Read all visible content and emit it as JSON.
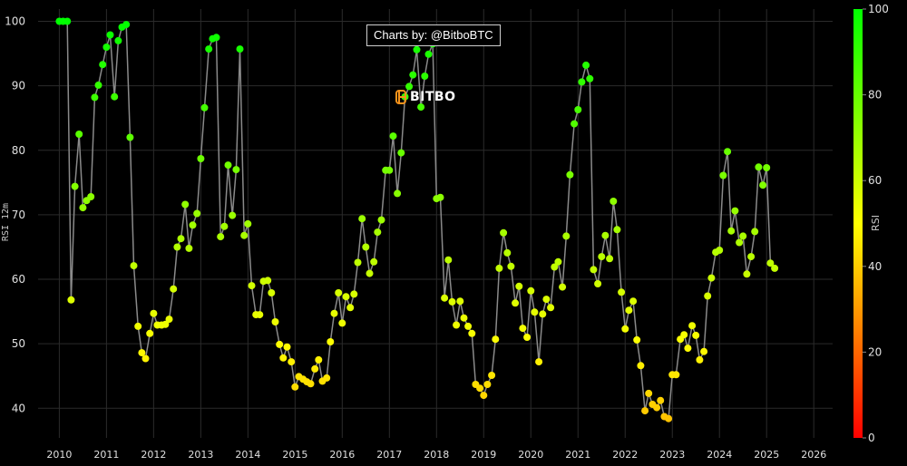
{
  "attribution": "Charts by: @BitboBTC",
  "watermark": {
    "text": "BITBO"
  },
  "chart_data": {
    "type": "scatter",
    "mode": "lines+markers",
    "title": "",
    "xlabel": "",
    "ylabel": "RSI 12m",
    "x_ticks": [
      "2010",
      "2011",
      "2012",
      "2013",
      "2014",
      "2015",
      "2016",
      "2017",
      "2018",
      "2019",
      "2020",
      "2021",
      "2022",
      "2023",
      "2024",
      "2025",
      "2026"
    ],
    "y_ticks": [
      40,
      50,
      60,
      70,
      80,
      90,
      100
    ],
    "xlim": [
      2009.55,
      2026.4
    ],
    "ylim": [
      35.4,
      101.9
    ],
    "grid": true,
    "line_color": "#8a8a8a",
    "colorbar": {
      "title": "RSI",
      "ticks": [
        0,
        20,
        40,
        60,
        80,
        100
      ],
      "range": [
        0,
        100
      ],
      "colors": [
        "#ff0000",
        "#ffff00",
        "#00ff00"
      ]
    },
    "series": [
      {
        "name": "RSI 12m",
        "x": [
          2010.0,
          2010.08,
          2010.17,
          2010.25,
          2010.33,
          2010.42,
          2010.5,
          2010.58,
          2010.67,
          2010.75,
          2010.83,
          2010.92,
          2011.0,
          2011.08,
          2011.17,
          2011.25,
          2011.33,
          2011.42,
          2011.5,
          2011.58,
          2011.67,
          2011.75,
          2011.83,
          2011.92,
          2012.0,
          2012.08,
          2012.17,
          2012.25,
          2012.33,
          2012.42,
          2012.5,
          2012.58,
          2012.67,
          2012.75,
          2012.83,
          2012.92,
          2013.0,
          2013.08,
          2013.17,
          2013.25,
          2013.33,
          2013.42,
          2013.5,
          2013.58,
          2013.67,
          2013.75,
          2013.83,
          2013.92,
          2014.0,
          2014.08,
          2014.17,
          2014.25,
          2014.33,
          2014.42,
          2014.5,
          2014.58,
          2014.67,
          2014.75,
          2014.83,
          2014.92,
          2015.0,
          2015.08,
          2015.17,
          2015.25,
          2015.33,
          2015.42,
          2015.5,
          2015.58,
          2015.67,
          2015.75,
          2015.83,
          2015.92,
          2016.0,
          2016.08,
          2016.17,
          2016.25,
          2016.33,
          2016.42,
          2016.5,
          2016.58,
          2016.67,
          2016.75,
          2016.83,
          2016.92,
          2017.0,
          2017.08,
          2017.17,
          2017.25,
          2017.33,
          2017.42,
          2017.5,
          2017.58,
          2017.67,
          2017.75,
          2017.83,
          2017.92,
          2018.0,
          2018.08,
          2018.17,
          2018.25,
          2018.33,
          2018.42,
          2018.5,
          2018.58,
          2018.67,
          2018.75,
          2018.83,
          2018.92,
          2019.0,
          2019.08,
          2019.17,
          2019.25,
          2019.33,
          2019.42,
          2019.5,
          2019.58,
          2019.67,
          2019.75,
          2019.83,
          2019.92,
          2020.0,
          2020.08,
          2020.17,
          2020.25,
          2020.33,
          2020.42,
          2020.5,
          2020.58,
          2020.67,
          2020.75,
          2020.83,
          2020.92,
          2021.0,
          2021.08,
          2021.17,
          2021.25,
          2021.33,
          2021.42,
          2021.5,
          2021.58,
          2021.67,
          2021.75,
          2021.83,
          2021.92,
          2022.0,
          2022.08,
          2022.17,
          2022.25,
          2022.33,
          2022.42,
          2022.5,
          2022.58,
          2022.67,
          2022.75,
          2022.83,
          2022.92,
          2023.0,
          2023.08,
          2023.17,
          2023.25,
          2023.33,
          2023.42,
          2023.5,
          2023.58,
          2023.67,
          2023.75,
          2023.83,
          2023.92,
          2024.0,
          2024.08,
          2024.17,
          2024.25,
          2024.33,
          2024.42,
          2024.5,
          2024.58,
          2024.67,
          2024.75,
          2024.83,
          2024.92,
          2025.0,
          2025.08,
          2025.17
        ],
        "y": [
          100,
          100,
          100,
          56.8,
          74.4,
          82.5,
          71.1,
          72.2,
          72.8,
          88.2,
          90.1,
          93.3,
          96.0,
          97.9,
          88.3,
          97.0,
          99.1,
          99.5,
          82.0,
          62.1,
          52.7,
          48.6,
          47.7,
          51.6,
          54.7,
          52.9,
          52.9,
          53.0,
          53.8,
          58.5,
          65.0,
          66.3,
          71.6,
          64.8,
          68.4,
          70.2,
          78.7,
          86.6,
          95.7,
          97.3,
          97.5,
          66.6,
          68.2,
          77.7,
          69.9,
          77.0,
          95.7,
          66.8,
          68.6,
          59.0,
          54.5,
          54.5,
          59.7,
          59.8,
          57.9,
          53.4,
          49.9,
          47.8,
          49.5,
          47.2,
          43.3,
          44.9,
          44.5,
          44.1,
          43.8,
          46.1,
          47.5,
          44.2,
          44.7,
          50.3,
          54.7,
          57.9,
          53.2,
          57.3,
          55.6,
          57.7,
          62.6,
          69.4,
          65.0,
          60.9,
          62.7,
          67.3,
          69.2,
          76.9,
          76.9,
          82.2,
          73.3,
          79.6,
          88.3,
          89.9,
          91.7,
          95.6,
          86.7,
          91.5,
          94.9,
          96.5,
          72.5,
          72.7,
          57.1,
          63.0,
          56.5,
          52.9,
          56.6,
          54.0,
          52.7,
          51.6,
          43.7,
          43.1,
          42.0,
          43.7,
          45.1,
          50.7,
          61.7,
          67.2,
          64.1,
          62.0,
          56.3,
          58.9,
          52.4,
          51.0,
          58.2,
          54.9,
          47.2,
          54.6,
          56.9,
          55.6,
          61.9,
          62.7,
          58.8,
          66.7,
          76.2,
          84.1,
          86.3,
          90.6,
          93.2,
          91.1,
          61.5,
          59.3,
          63.5,
          66.8,
          63.2,
          72.1,
          67.7,
          58.0,
          52.3,
          55.2,
          56.6,
          50.6,
          46.6,
          39.6,
          42.3,
          40.6,
          40.1,
          41.2,
          38.7,
          38.4,
          45.2,
          45.2,
          50.7,
          51.4,
          49.3,
          52.8,
          51.3,
          47.5,
          48.8,
          57.4,
          60.2,
          64.2,
          64.5,
          76.1,
          79.8,
          67.5,
          70.6,
          65.7,
          66.7,
          60.8,
          63.5,
          67.4,
          77.4,
          74.6,
          77.3,
          62.5,
          61.7
        ]
      }
    ]
  }
}
